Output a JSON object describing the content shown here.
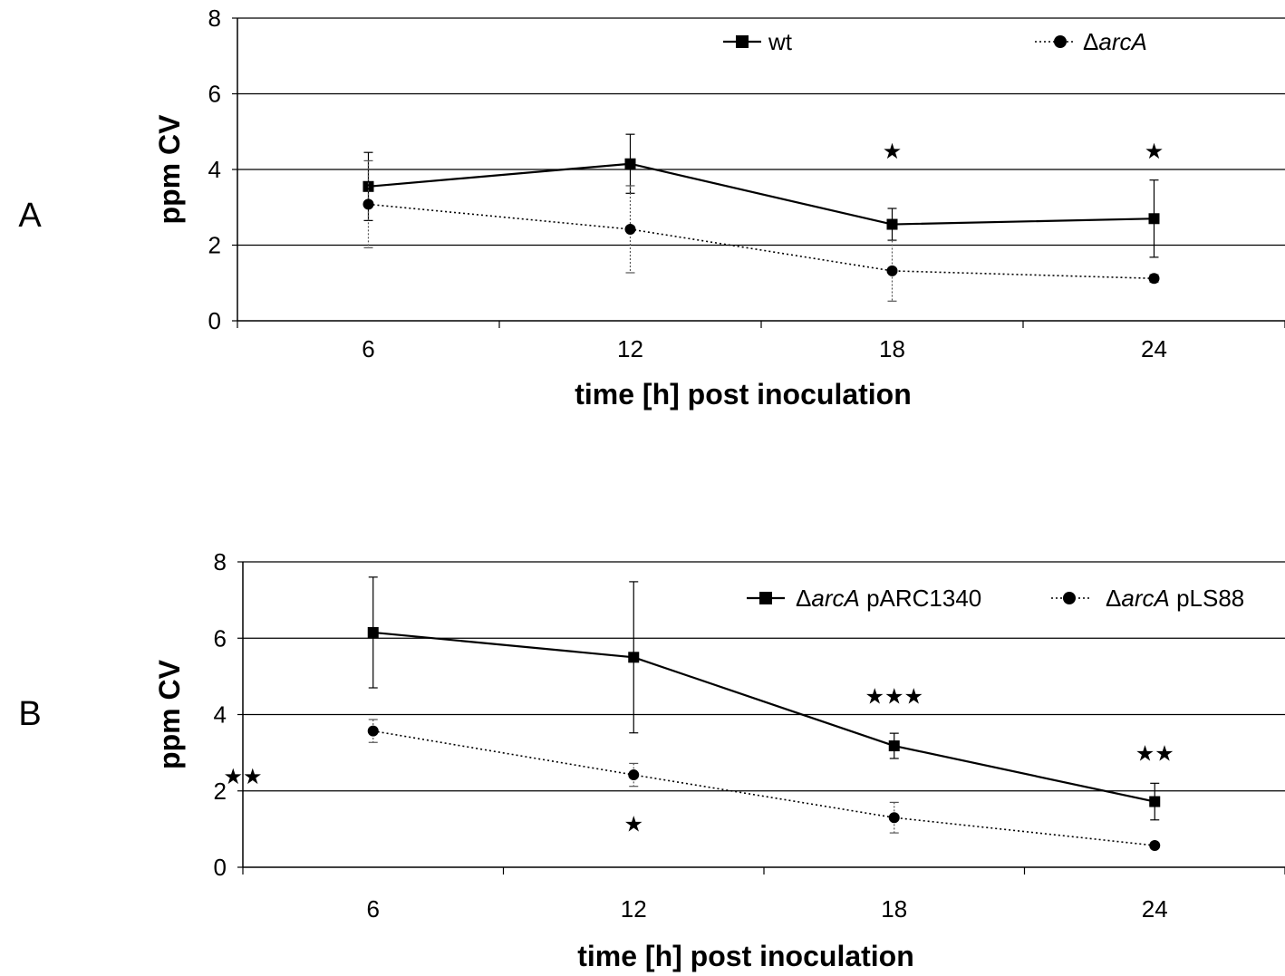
{
  "chart_data": [
    {
      "type": "line",
      "panel_label": "A",
      "xlabel": "time [h] post inoculation",
      "ylabel": "ppm CV",
      "categories": [
        "6",
        "12",
        "18",
        "24"
      ],
      "ylim": [
        0,
        8
      ],
      "yticks": [
        "0",
        "2",
        "4",
        "6",
        "8"
      ],
      "grid": true,
      "legend_position": "top",
      "series": [
        {
          "name": "wt",
          "name_prefix": "",
          "name_italic": "",
          "name_suffix": "wt",
          "style": "solid",
          "marker": "square",
          "values": [
            3.55,
            4.15,
            2.55,
            2.7
          ],
          "errors": [
            0.9,
            0.78,
            0.42,
            1.02
          ]
        },
        {
          "name": "ΔarcA",
          "name_prefix": "Δ",
          "name_italic": "arcA",
          "name_suffix": "",
          "style": "dotted",
          "marker": "circle",
          "values": [
            3.08,
            2.42,
            1.32,
            1.12
          ],
          "errors": [
            1.15,
            1.15,
            0.8,
            0.1
          ]
        }
      ],
      "annotations": [
        {
          "category": "18",
          "text": "★",
          "y": 4.5
        },
        {
          "category": "24",
          "text": "★",
          "y": 4.5
        }
      ]
    },
    {
      "type": "line",
      "panel_label": "B",
      "xlabel": "time [h] post inoculation",
      "ylabel": "ppm CV",
      "categories": [
        "6",
        "12",
        "18",
        "24"
      ],
      "ylim": [
        0,
        8
      ],
      "yticks": [
        "0",
        "2",
        "4",
        "6",
        "8"
      ],
      "grid": true,
      "legend_position": "top-right",
      "series": [
        {
          "name": "ΔarcA pARC1340",
          "name_prefix": "Δ",
          "name_italic": "arcA",
          "name_suffix": " pARC1340",
          "style": "solid",
          "marker": "square",
          "values": [
            6.15,
            5.5,
            3.18,
            1.72
          ],
          "errors": [
            1.45,
            1.98,
            0.33,
            0.48
          ]
        },
        {
          "name": "ΔarcA pLS88",
          "name_prefix": "Δ",
          "name_italic": "arcA",
          "name_suffix": " pLS88",
          "style": "dotted",
          "marker": "circle",
          "values": [
            3.57,
            2.42,
            1.3,
            0.57
          ],
          "errors": [
            0.3,
            0.3,
            0.4,
            0.05
          ]
        }
      ],
      "annotations": [
        {
          "category": "6",
          "text": "★★",
          "y": 2.4,
          "offset": -0.5
        },
        {
          "category": "12",
          "text": "★",
          "y": 1.15
        },
        {
          "category": "18",
          "text": "★★★",
          "y": 4.5
        },
        {
          "category": "24",
          "text": "★★",
          "y": 3.0
        }
      ]
    }
  ]
}
